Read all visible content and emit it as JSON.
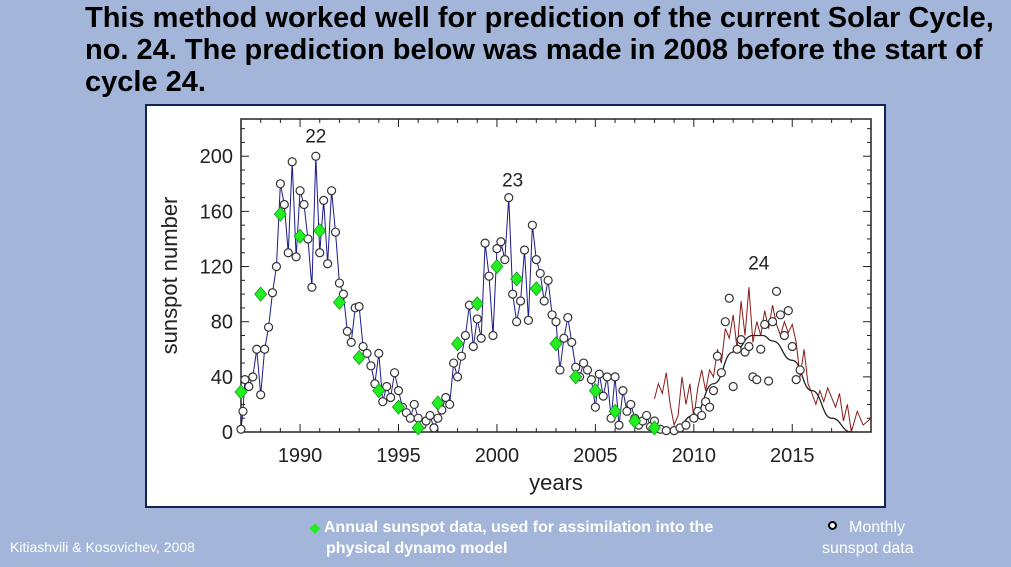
{
  "title": "This method worked well for prediction of the current Solar Cycle, no. 24. The prediction below was made in 2008 before the start of cycle 24.",
  "legend": {
    "annual_line1": "Annual sunspot data, used for assimilation into the",
    "annual_line2": "physical dynamo model",
    "monthly_line1": "Monthly",
    "monthly_line2": "sunspot data"
  },
  "credit": "Kitiashvili & Kosovichev, 2008",
  "colors": {
    "background": "#a3b6da",
    "frame": "#13235a",
    "annual": "#22ee22",
    "cycle22_23": "#1a1a8a",
    "cycle24_obs": "#8b1a1a",
    "prediction": "#222222"
  },
  "chart_data": {
    "type": "scatter",
    "xlabel": "years",
    "ylabel": "sunspot number",
    "xlim": [
      1987,
      2019
    ],
    "ylim": [
      0,
      227
    ],
    "xticks": [
      1990,
      1995,
      2000,
      2005,
      2010,
      2015
    ],
    "yticks": [
      0,
      40,
      80,
      120,
      160,
      200
    ],
    "cycle_labels": [
      {
        "text": "22",
        "x": 1990.8,
        "y": 210
      },
      {
        "text": "23",
        "x": 2000.8,
        "y": 178
      },
      {
        "text": "24",
        "x": 2013.3,
        "y": 118
      }
    ],
    "annual": [
      [
        1987,
        29
      ],
      [
        1988,
        100
      ],
      [
        1989,
        158
      ],
      [
        1990,
        142
      ],
      [
        1991,
        146
      ],
      [
        1992,
        94
      ],
      [
        1993,
        54
      ],
      [
        1994,
        30
      ],
      [
        1995,
        18
      ],
      [
        1996,
        3
      ],
      [
        1997,
        21
      ],
      [
        1998,
        64
      ],
      [
        1999,
        93
      ],
      [
        2000,
        120
      ],
      [
        2001,
        111
      ],
      [
        2002,
        104
      ],
      [
        2003,
        64
      ],
      [
        2004,
        40
      ],
      [
        2005,
        30
      ],
      [
        2006,
        15
      ],
      [
        2007,
        8
      ],
      [
        2008,
        3
      ]
    ],
    "monthly": [
      [
        1987.0,
        2
      ],
      [
        1987.1,
        15
      ],
      [
        1987.2,
        38
      ],
      [
        1987.4,
        33
      ],
      [
        1987.6,
        40
      ],
      [
        1987.8,
        60
      ],
      [
        1988.0,
        27
      ],
      [
        1988.2,
        60
      ],
      [
        1988.4,
        76
      ],
      [
        1988.6,
        101
      ],
      [
        1988.8,
        120
      ],
      [
        1989.0,
        180
      ],
      [
        1989.2,
        165
      ],
      [
        1989.4,
        130
      ],
      [
        1989.6,
        196
      ],
      [
        1989.8,
        127
      ],
      [
        1990.0,
        175
      ],
      [
        1990.2,
        165
      ],
      [
        1990.4,
        140
      ],
      [
        1990.6,
        105
      ],
      [
        1990.8,
        200
      ],
      [
        1991.0,
        130
      ],
      [
        1991.2,
        168
      ],
      [
        1991.4,
        122
      ],
      [
        1991.6,
        175
      ],
      [
        1991.8,
        145
      ],
      [
        1992.0,
        108
      ],
      [
        1992.2,
        100
      ],
      [
        1992.4,
        73
      ],
      [
        1992.6,
        65
      ],
      [
        1992.8,
        90
      ],
      [
        1993.0,
        91
      ],
      [
        1993.2,
        62
      ],
      [
        1993.4,
        57
      ],
      [
        1993.6,
        48
      ],
      [
        1993.8,
        35
      ],
      [
        1994.0,
        57
      ],
      [
        1994.2,
        22
      ],
      [
        1994.4,
        33
      ],
      [
        1994.6,
        25
      ],
      [
        1994.8,
        43
      ],
      [
        1995.0,
        30
      ],
      [
        1995.2,
        18
      ],
      [
        1995.4,
        14
      ],
      [
        1995.6,
        10
      ],
      [
        1995.8,
        20
      ],
      [
        1996.0,
        10
      ],
      [
        1996.2,
        5
      ],
      [
        1996.4,
        8
      ],
      [
        1996.6,
        12
      ],
      [
        1996.8,
        3
      ],
      [
        1997.0,
        10
      ],
      [
        1997.2,
        16
      ],
      [
        1997.4,
        25
      ],
      [
        1997.6,
        20
      ],
      [
        1997.8,
        50
      ],
      [
        1998.0,
        40
      ],
      [
        1998.2,
        55
      ],
      [
        1998.4,
        70
      ],
      [
        1998.6,
        92
      ],
      [
        1998.8,
        62
      ],
      [
        1999.0,
        82
      ],
      [
        1999.2,
        68
      ],
      [
        1999.4,
        137
      ],
      [
        1999.6,
        113
      ],
      [
        1999.8,
        70
      ],
      [
        2000.0,
        133
      ],
      [
        2000.2,
        138
      ],
      [
        2000.4,
        125
      ],
      [
        2000.6,
        170
      ],
      [
        2000.8,
        100
      ],
      [
        2001.0,
        80
      ],
      [
        2001.2,
        95
      ],
      [
        2001.4,
        132
      ],
      [
        2001.6,
        81
      ],
      [
        2001.8,
        150
      ],
      [
        2002.0,
        125
      ],
      [
        2002.2,
        115
      ],
      [
        2002.4,
        95
      ],
      [
        2002.6,
        110
      ],
      [
        2002.8,
        85
      ],
      [
        2003.0,
        80
      ],
      [
        2003.2,
        45
      ],
      [
        2003.4,
        68
      ],
      [
        2003.6,
        83
      ],
      [
        2003.8,
        65
      ],
      [
        2004.0,
        47
      ],
      [
        2004.2,
        40
      ],
      [
        2004.4,
        50
      ],
      [
        2004.6,
        45
      ],
      [
        2004.8,
        38
      ],
      [
        2005.0,
        18
      ],
      [
        2005.2,
        42
      ],
      [
        2005.4,
        26
      ],
      [
        2005.6,
        40
      ],
      [
        2005.8,
        10
      ],
      [
        2006.0,
        40
      ],
      [
        2006.2,
        5
      ],
      [
        2006.4,
        30
      ],
      [
        2006.6,
        15
      ],
      [
        2006.8,
        20
      ],
      [
        2007.0,
        10
      ],
      [
        2007.2,
        5
      ],
      [
        2007.4,
        8
      ],
      [
        2007.6,
        12
      ],
      [
        2007.8,
        4
      ],
      [
        2008.0,
        8
      ],
      [
        2008.3,
        2
      ],
      [
        2008.6,
        1
      ],
      [
        2009.0,
        1
      ],
      [
        2009.3,
        3
      ],
      [
        2009.6,
        5
      ],
      [
        2010.0,
        10
      ],
      [
        2010.2,
        15
      ],
      [
        2010.4,
        12
      ],
      [
        2010.6,
        22
      ],
      [
        2010.8,
        18
      ],
      [
        2011.0,
        30
      ],
      [
        2011.2,
        55
      ],
      [
        2011.4,
        43
      ],
      [
        2011.6,
        80
      ],
      [
        2011.8,
        97
      ],
      [
        2012.0,
        33
      ],
      [
        2012.2,
        60
      ],
      [
        2012.4,
        67
      ],
      [
        2012.6,
        58
      ],
      [
        2012.8,
        62
      ],
      [
        2013.0,
        40
      ],
      [
        2013.2,
        38
      ],
      [
        2013.4,
        60
      ],
      [
        2013.6,
        78
      ],
      [
        2013.8,
        37
      ],
      [
        2014.0,
        80
      ],
      [
        2014.2,
        102
      ],
      [
        2014.4,
        85
      ],
      [
        2014.6,
        70
      ],
      [
        2014.8,
        88
      ],
      [
        2015.0,
        62
      ],
      [
        2015.2,
        38
      ],
      [
        2015.4,
        45
      ]
    ],
    "cycle24_observed": [
      [
        2008.0,
        24
      ],
      [
        2008.2,
        35
      ],
      [
        2008.4,
        28
      ],
      [
        2008.6,
        43
      ],
      [
        2008.8,
        20
      ],
      [
        2009.0,
        5
      ],
      [
        2009.2,
        12
      ],
      [
        2009.4,
        40
      ],
      [
        2009.6,
        20
      ],
      [
        2009.8,
        35
      ],
      [
        2010.0,
        10
      ],
      [
        2010.2,
        32
      ],
      [
        2010.4,
        45
      ],
      [
        2010.6,
        30
      ],
      [
        2010.8,
        45
      ],
      [
        2011.0,
        40
      ],
      [
        2011.2,
        60
      ],
      [
        2011.4,
        50
      ],
      [
        2011.6,
        75
      ],
      [
        2011.8,
        68
      ],
      [
        2012.0,
        85
      ],
      [
        2012.2,
        60
      ],
      [
        2012.4,
        95
      ],
      [
        2012.6,
        70
      ],
      [
        2012.8,
        105
      ],
      [
        2013.0,
        65
      ],
      [
        2013.2,
        80
      ],
      [
        2013.4,
        70
      ],
      [
        2013.6,
        88
      ],
      [
        2013.8,
        75
      ],
      [
        2014.0,
        92
      ],
      [
        2014.2,
        78
      ],
      [
        2014.4,
        70
      ],
      [
        2014.6,
        80
      ],
      [
        2014.8,
        72
      ],
      [
        2015.0,
        78
      ],
      [
        2015.2,
        65
      ],
      [
        2015.4,
        40
      ],
      [
        2015.6,
        60
      ],
      [
        2015.8,
        35
      ],
      [
        2016.0,
        28
      ],
      [
        2016.2,
        20
      ],
      [
        2016.4,
        30
      ],
      [
        2016.6,
        22
      ],
      [
        2016.8,
        32
      ],
      [
        2017.0,
        25
      ],
      [
        2017.2,
        18
      ],
      [
        2017.4,
        28
      ],
      [
        2017.6,
        8
      ],
      [
        2017.8,
        20
      ],
      [
        2018.0,
        0
      ],
      [
        2018.3,
        15
      ],
      [
        2018.6,
        5
      ],
      [
        2019.0,
        10
      ]
    ],
    "prediction": [
      [
        2008.5,
        0
      ],
      [
        2009,
        2
      ],
      [
        2010,
        12
      ],
      [
        2011,
        35
      ],
      [
        2012,
        58
      ],
      [
        2013,
        70
      ],
      [
        2013.5,
        70
      ],
      [
        2014,
        66
      ],
      [
        2015,
        52
      ],
      [
        2016,
        30
      ],
      [
        2017,
        10
      ],
      [
        2018,
        0
      ]
    ]
  }
}
